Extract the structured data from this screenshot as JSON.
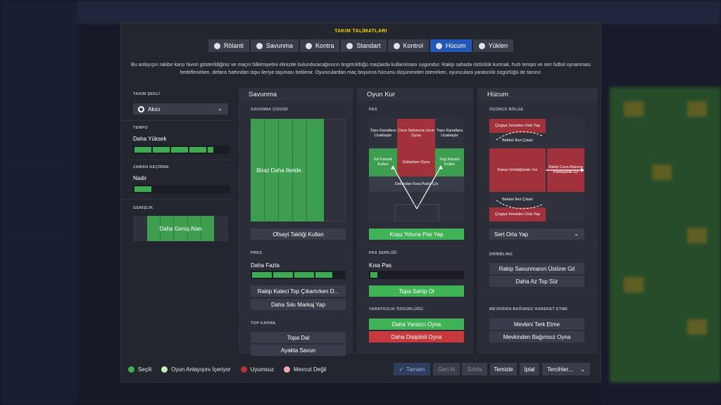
{
  "title": "TAKIM TALİMATLARI",
  "tabs": [
    {
      "label": "Rölanti",
      "icon": "rolanti-icon"
    },
    {
      "label": "Savunma",
      "icon": "shield-icon"
    },
    {
      "label": "Kontra",
      "icon": "counter-icon"
    },
    {
      "label": "Standart",
      "icon": "ball-icon"
    },
    {
      "label": "Kontrol",
      "icon": "control-icon"
    },
    {
      "label": "Hücum",
      "icon": "attack-icon",
      "active": true
    },
    {
      "label": "Yüklen",
      "icon": "overload-icon"
    }
  ],
  "description": "Bu anlayışın rakibe karşı favori gösterildiğiniz ve maçın hâkimiyetini elinizde bulunduracağınızın öngörüldüğü maçlarda kullanılması uygundur. Rakip sahada üstünlük kurmak, hızlı tempo ve seri futbol oynanması hedeflenirken, defans hattından topu ileriye taşıması beklenir. Oyunculardan maç boyunca hücumu düşünmeleri istenirken, oyunculara yaratıcılık özgürlüğü de tanınır.",
  "left": {
    "shape_label": "TAKIM ŞEKLİ",
    "shape_value": "Akıcı",
    "tempo_label": "TEMPO",
    "tempo_value": "Daha Yüksek",
    "tempo_level": 0.8,
    "timewaste_label": "ZAMAN GEÇİRME",
    "timewaste_value": "Nadir",
    "timewaste_level": 0.2,
    "width_label": "GENİŞLİK",
    "width_value": "Daha Geniş Alan"
  },
  "defense": {
    "header": "Savunma",
    "line_label": "SAVUNMA ÇİZGİSİ",
    "line_value": "Biraz Daha İleride",
    "offside_btn": "Ofsayt Taktiği Kullan",
    "press_label": "PRES",
    "press_value": "Daha Fazla",
    "press_level": 0.8,
    "press_btn1": "Rakip Kaleci Top Çıkartırken D...",
    "press_btn2": "Daha Sıkı Markaj Yap",
    "tackle_label": "TOP KAPMA",
    "tackle_btn1": "Topa Dal",
    "tackle_btn2": "Ayakta Savun"
  },
  "buildup": {
    "header": "Oyun Kur",
    "pass_label": "PAS",
    "cells": {
      "tl": "Topu Kanatlara Uzaklaştır",
      "tc": "Ceza Sahasına Uzun Oyna",
      "tr": "Topu Kanatlara Uzaklaştır",
      "ml": "Sol Kanadı Kullan",
      "mc": "Göbekten Oyna",
      "mr": "Sağ Kanadı Kullan",
      "bottom": "Defandan Kısa Pasla Çık"
    },
    "run_btn": "Koşu Yoluna Pas Yap",
    "pace_label": "PAS SERİLİĞİ",
    "pace_value": "Kısa Pas",
    "pace_level": 0.2,
    "keep_btn": "Topa Sahip Ol",
    "creative_label": "YARATICILIK ÖZGÜRLÜĞÜ",
    "creative_btn1": "Daha Yaratıcı Oyna",
    "creative_btn2": "Daha Disiplinli Oyna"
  },
  "attack": {
    "header": "Hücum",
    "third_label": "ÜÇÜNCÜ BÖLGE",
    "cells": {
      "top": "Çizgiye İnmeden Orta Yap",
      "ul": "Bekleri İleri Çıkart",
      "center": "Kaleyi Gördüğünde Vur",
      "right": "Rakip Ceza Alanına Paslaşarak Gir",
      "ll": "Bekleri İleri Çıkart",
      "bottom": "Çizgiye İnmeden Orta Yap"
    },
    "cross_value": "Sert Orta Yap",
    "dribble_label": "DRİBBLİNG",
    "dribble_btn1": "Rakip Savunmanın Üstüne Git",
    "dribble_btn2": "Daha Az Top Sür",
    "free_label": "MEVKİDEN BAĞIMSIZ HAREKET ETME",
    "free_btn1": "Mevkini Terk Etme",
    "free_btn2": "Mevkinden Bağımsız Oyna"
  },
  "legend": [
    {
      "label": "Seçili",
      "color": "#3fb155"
    },
    {
      "label": "Oyun Anlayışını İçeriyor",
      "color": "#c5eeb8"
    },
    {
      "label": "Uyumsuz",
      "color": "#b8303a"
    },
    {
      "label": "Mevcut Değil",
      "color": "#f0a7ae"
    }
  ],
  "footer": {
    "ok": "Tamam",
    "back": "Geri Al",
    "reset": "Sıfırla",
    "clear": "Temizle",
    "cancel": "İptal",
    "prefs": "Tercihler..."
  }
}
